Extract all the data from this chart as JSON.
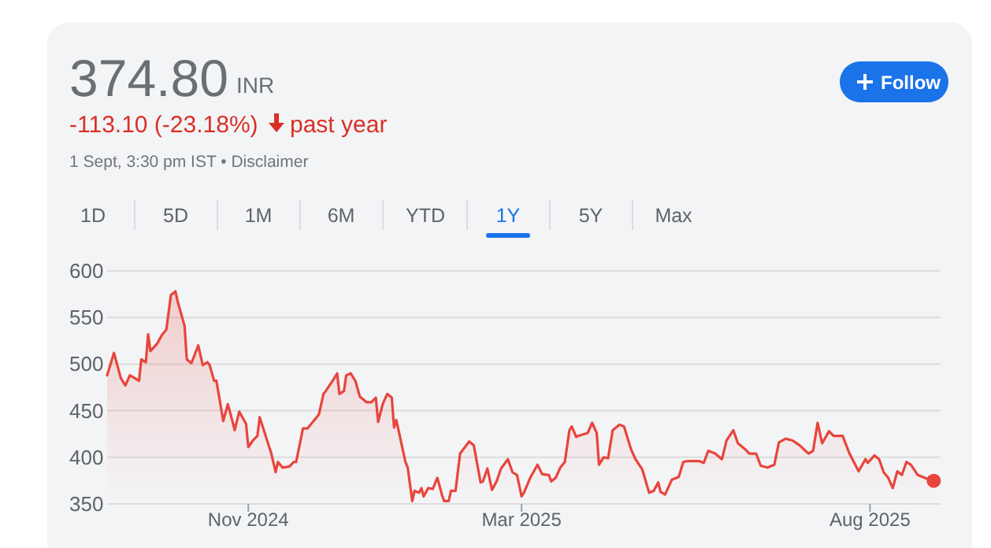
{
  "chart_data": {
    "type": "area",
    "title": "374.80",
    "subtitle": "INR",
    "annotations": [
      "-113.10 (-23.18%)",
      "past year",
      "1 Sept, 3:30 pm IST • Disclaimer",
      "Follow",
      "1D",
      "5D",
      "1M",
      "6M",
      "YTD",
      "1Y",
      "5Y",
      "Max"
    ],
    "xlim": [
      "2024-08-31",
      "2025-09-01"
    ],
    "xticks": [
      {
        "value": "2024-11-01",
        "label": "Nov 2024"
      },
      {
        "value": "2025-03-01",
        "label": "Mar 2025"
      },
      {
        "value": "2025-08-01",
        "label": "Aug 2025"
      }
    ],
    "ylim": [
      350,
      600
    ],
    "yticks": [
      350,
      400,
      450,
      500,
      550,
      600
    ],
    "grid": "y",
    "series": [
      {
        "color": "#e8453c",
        "x": [
          "2024-08-31",
          "2024-09-03",
          "2024-09-06",
          "2024-09-08",
          "2024-09-10",
          "2024-09-12",
          "2024-09-14",
          "2024-09-15",
          "2024-09-17",
          "2024-09-18",
          "2024-09-19",
          "2024-09-22",
          "2024-09-24",
          "2024-09-26",
          "2024-09-28",
          "2024-09-30",
          "2024-10-01",
          "2024-10-04",
          "2024-10-05",
          "2024-10-07",
          "2024-10-10",
          "2024-10-12",
          "2024-10-14",
          "2024-10-15",
          "2024-10-17",
          "2024-10-18",
          "2024-10-21",
          "2024-10-23",
          "2024-10-25",
          "2024-10-26",
          "2024-10-28",
          "2024-10-31",
          "2024-11-01",
          "2024-11-03",
          "2024-11-05",
          "2024-11-06",
          "2024-11-09",
          "2024-11-11",
          "2024-11-13",
          "2024-11-14",
          "2024-11-16",
          "2024-11-19",
          "2024-11-21",
          "2024-11-22",
          "2024-11-25",
          "2024-11-27",
          "2024-11-30",
          "2024-12-02",
          "2024-12-04",
          "2024-12-05",
          "2024-12-08",
          "2024-12-10",
          "2024-12-11",
          "2024-12-13",
          "2024-12-14",
          "2024-12-16",
          "2024-12-18",
          "2024-12-20",
          "2024-12-23",
          "2024-12-25",
          "2024-12-27",
          "2024-12-28",
          "2024-12-30",
          "2025-01-01",
          "2025-01-03",
          "2025-01-04",
          "2025-01-05",
          "2025-01-09",
          "2025-01-10",
          "2025-01-12",
          "2025-01-13",
          "2025-01-15",
          "2025-01-16",
          "2025-01-17",
          "2025-01-19",
          "2025-01-21",
          "2025-01-23",
          "2025-01-25",
          "2025-01-26",
          "2025-01-28",
          "2025-01-29",
          "2025-01-31",
          "2025-02-02",
          "2025-02-06",
          "2025-02-08",
          "2025-02-11",
          "2025-02-12",
          "2025-02-14",
          "2025-02-16",
          "2025-02-18",
          "2025-02-20",
          "2025-02-23",
          "2025-02-25",
          "2025-02-27",
          "2025-03-01",
          "2025-03-02",
          "2025-03-05",
          "2025-03-08",
          "2025-03-10",
          "2025-03-13",
          "2025-03-14",
          "2025-03-16",
          "2025-03-18",
          "2025-03-20",
          "2025-03-22",
          "2025-03-23",
          "2025-03-25",
          "2025-03-26",
          "2025-03-30",
          "2025-04-01",
          "2025-04-03",
          "2025-04-04",
          "2025-04-06",
          "2025-04-08",
          "2025-04-10",
          "2025-04-13",
          "2025-04-15",
          "2025-04-18",
          "2025-04-20",
          "2025-04-23",
          "2025-04-26",
          "2025-04-28",
          "2025-04-30",
          "2025-05-01",
          "2025-05-03",
          "2025-05-06",
          "2025-05-09",
          "2025-05-11",
          "2025-05-13",
          "2025-05-18",
          "2025-05-20",
          "2025-05-22",
          "2025-05-25",
          "2025-05-28",
          "2025-05-30",
          "2025-06-02",
          "2025-06-04",
          "2025-06-07",
          "2025-06-09",
          "2025-06-12",
          "2025-06-14",
          "2025-06-17",
          "2025-06-20",
          "2025-06-22",
          "2025-06-25",
          "2025-06-28",
          "2025-07-01",
          "2025-07-05",
          "2025-07-07",
          "2025-07-09",
          "2025-07-11",
          "2025-07-14",
          "2025-07-16",
          "2025-07-20",
          "2025-07-23",
          "2025-07-27",
          "2025-07-30",
          "2025-07-31",
          "2025-08-03",
          "2025-08-05",
          "2025-08-07",
          "2025-08-09",
          "2025-08-11",
          "2025-08-13",
          "2025-08-15",
          "2025-08-17",
          "2025-08-19",
          "2025-08-22",
          "2025-08-26",
          "2025-08-29"
        ],
        "values": [
          488,
          512,
          485,
          477,
          488,
          485,
          482,
          505,
          502,
          532,
          514,
          522,
          531,
          537,
          574,
          578,
          567,
          541,
          505,
          501,
          520,
          499,
          502,
          499,
          482,
          482,
          439,
          457,
          439,
          429,
          449,
          436,
          411,
          418,
          423,
          443,
          420,
          405,
          384,
          395,
          389,
          390,
          395,
          395,
          431,
          431,
          440,
          446,
          468,
          471,
          482,
          490,
          468,
          471,
          488,
          490,
          482,
          465,
          459,
          459,
          464,
          438,
          457,
          468,
          464,
          432,
          440,
          395,
          389,
          353,
          364,
          362,
          367,
          358,
          367,
          366,
          378,
          360,
          353,
          353,
          364,
          364,
          404,
          417,
          413,
          373,
          374,
          388,
          365,
          374,
          388,
          398,
          384,
          381,
          358,
          362,
          379,
          392,
          382,
          381,
          374,
          378,
          389,
          395,
          429,
          433,
          422,
          423,
          426,
          437,
          426,
          392,
          400,
          399,
          429,
          435,
          433,
          409,
          398,
          387,
          362,
          364,
          373,
          363,
          360,
          376,
          379,
          395,
          396,
          396,
          394,
          407,
          404,
          398,
          418,
          429,
          415,
          409,
          404,
          404,
          391,
          389,
          392,
          416,
          420,
          418,
          413,
          404,
          407,
          437,
          415,
          428,
          423,
          423,
          404,
          385,
          398,
          394,
          402,
          398,
          384,
          378,
          367,
          385,
          381,
          395,
          392,
          381,
          377,
          374.8
        ]
      },
      {
        "type": "scatter",
        "color": "#e8453c",
        "x": [
          "2025-08-29"
        ],
        "values": [
          374.8
        ]
      }
    ]
  }
}
